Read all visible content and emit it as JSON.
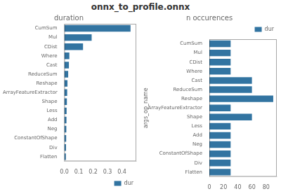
{
  "title": "onnx_to_profile.onnx",
  "chart_data": [
    {
      "type": "bar",
      "orientation": "horizontal",
      "title": "duration",
      "categories": [
        "CumSum",
        "Mul",
        "CDist",
        "Where",
        "Cast",
        "ReduceSum",
        "Reshape",
        "ArrayFeatureExtractor",
        "Shape",
        "Less",
        "Add",
        "Neg",
        "ConstantOfShape",
        "Div",
        "Flatten"
      ],
      "series": [
        {
          "name": "dur",
          "color": "#3274A1",
          "values": [
            0.46,
            0.19,
            0.13,
            0.035,
            0.032,
            0.027,
            0.022,
            0.02,
            0.018,
            0.016,
            0.015,
            0.014,
            0.013,
            0.012,
            0.011
          ]
        }
      ],
      "xlim": [
        0.0,
        0.5
      ],
      "xticks": [
        {
          "value": 0,
          "label": "0.0"
        },
        0.1,
        0.2,
        0.3,
        0.4
      ],
      "grid": false,
      "legend": "lower right"
    },
    {
      "type": "bar",
      "orientation": "horizontal",
      "title": "n occurences",
      "ylabel": "args_op_name",
      "categories": [
        "CumSum",
        "Mul",
        "CDist",
        "Where",
        "Cast",
        "ReduceSum",
        "Reshape",
        "ArrayFeatureExtractor",
        "Shape",
        "Less",
        "Add",
        "Neg",
        "ConstantOfShape",
        "Div",
        "Flatten"
      ],
      "series": [
        {
          "name": "dur",
          "color": "#3274A1",
          "values": [
            30,
            30,
            30,
            30,
            60,
            60,
            90,
            30,
            60,
            30,
            30,
            30,
            30,
            30,
            30
          ]
        }
      ],
      "xlim": [
        0,
        95
      ],
      "xticks": [
        0,
        20,
        40,
        60,
        80
      ],
      "grid": false,
      "legend": "upper right"
    }
  ]
}
